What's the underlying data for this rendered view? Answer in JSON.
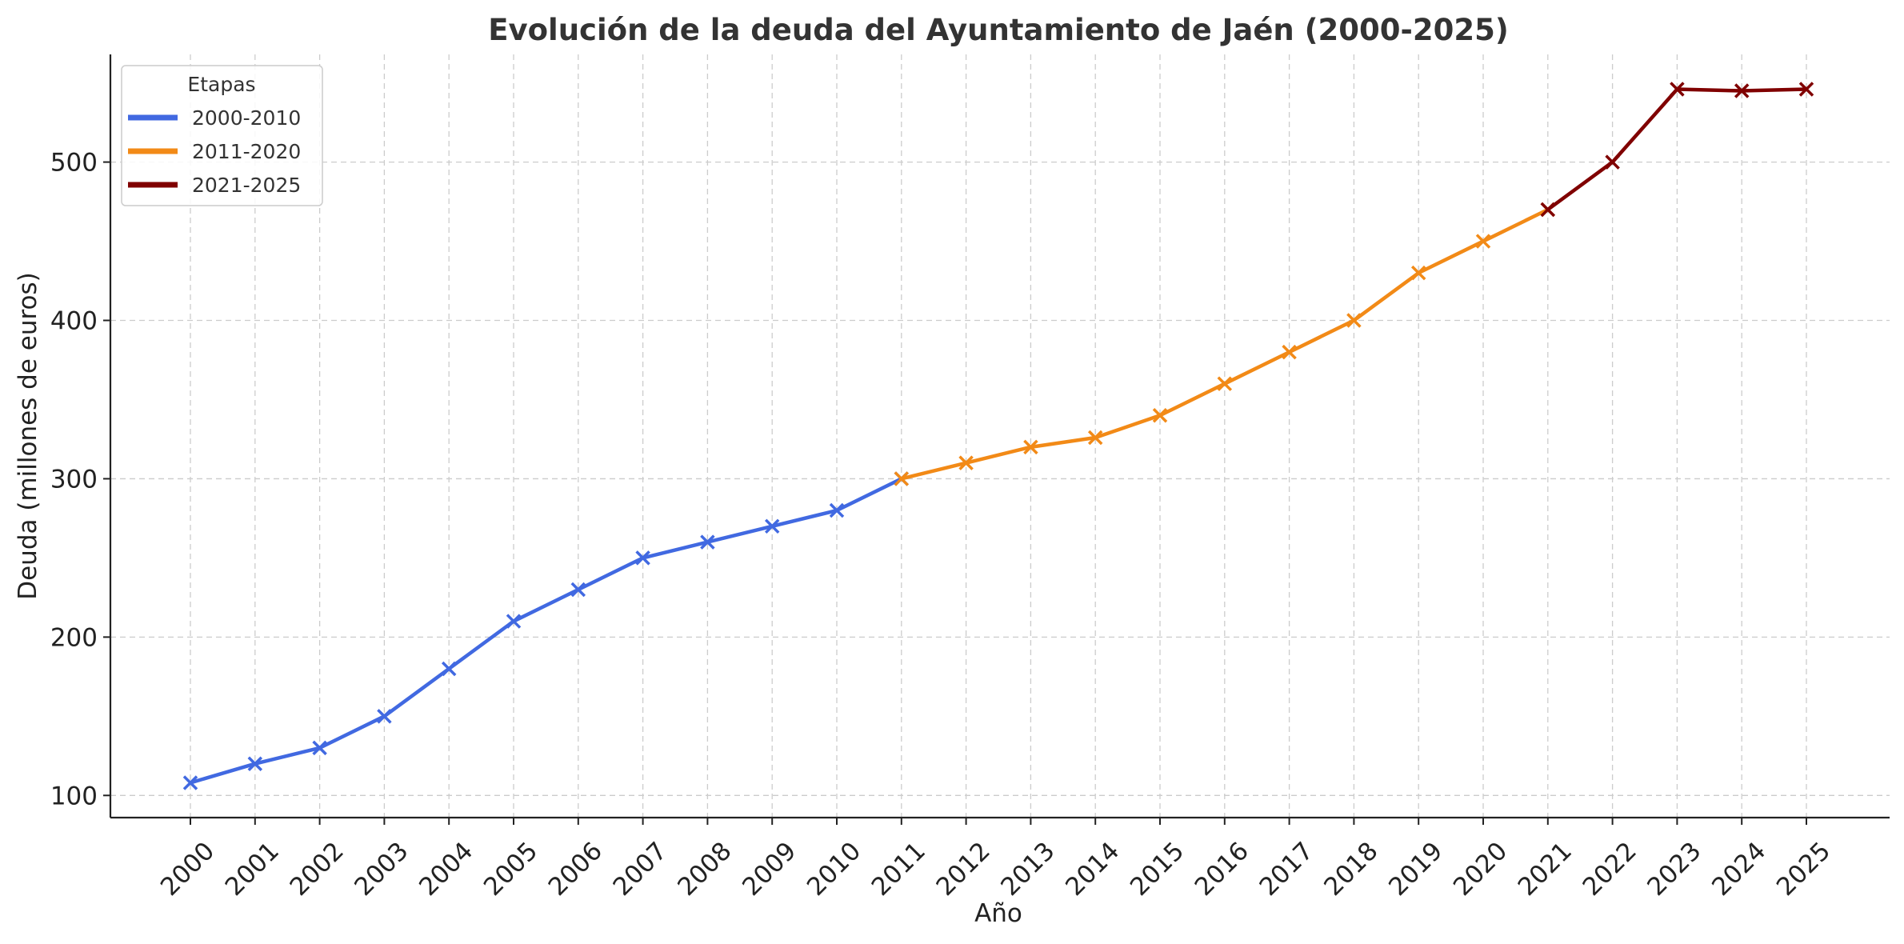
{
  "chart_data": {
    "type": "line",
    "title": "Evolución de la deuda del Ayuntamiento de Jaén (2000-2025)",
    "xlabel": "Año",
    "ylabel": "Deuda (millones de euros)",
    "x": [
      2000,
      2001,
      2002,
      2003,
      2004,
      2005,
      2006,
      2007,
      2008,
      2009,
      2010,
      2011,
      2012,
      2013,
      2014,
      2015,
      2016,
      2017,
      2018,
      2019,
      2020,
      2021,
      2022,
      2023,
      2024,
      2025
    ],
    "x_tick_labels": [
      "2000",
      "2001",
      "2002",
      "2003",
      "2004",
      "2005",
      "2006",
      "2007",
      "2008",
      "2009",
      "2010",
      "2011",
      "2012",
      "2013",
      "2014",
      "2015",
      "2016",
      "2017",
      "2018",
      "2019",
      "2020",
      "2021",
      "2022",
      "2023",
      "2024",
      "2025"
    ],
    "ylim": [
      86,
      568
    ],
    "yticks": [
      100,
      200,
      300,
      400,
      500
    ],
    "ytick_labels": [
      "100",
      "200",
      "300",
      "400",
      "500"
    ],
    "grid": true,
    "legend": {
      "title": "Etapas",
      "placement": "top-left"
    },
    "marker": "x",
    "series": [
      {
        "name": "2000-2010",
        "color": "#4169e1",
        "x": [
          2000,
          2001,
          2002,
          2003,
          2004,
          2005,
          2006,
          2007,
          2008,
          2009,
          2010,
          2011
        ],
        "values": [
          108,
          120,
          130,
          150,
          180,
          210,
          230,
          250,
          260,
          270,
          280,
          300
        ]
      },
      {
        "name": "2011-2020",
        "color": "#f28a17",
        "x": [
          2011,
          2012,
          2013,
          2014,
          2015,
          2016,
          2017,
          2018,
          2019,
          2020,
          2021
        ],
        "values": [
          300,
          310,
          320,
          326,
          340,
          360,
          380,
          400,
          430,
          450,
          470
        ]
      },
      {
        "name": "2021-2025",
        "color": "#800000",
        "x": [
          2021,
          2022,
          2023,
          2024,
          2025
        ],
        "values": [
          470,
          500,
          546,
          545,
          546
        ]
      }
    ]
  }
}
